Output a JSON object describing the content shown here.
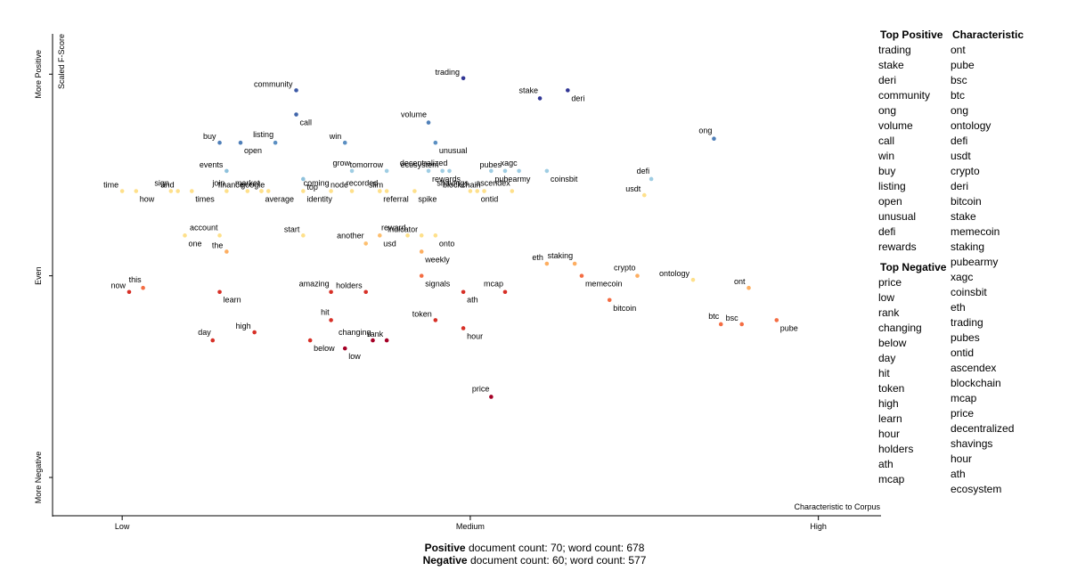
{
  "chart_data": {
    "type": "scatter",
    "title": "",
    "ylabel": "Scaled F-Score",
    "xlabel": "Characteristic to Corpus",
    "y_tick_labels": [
      "More Positive",
      "Even",
      "More Negative"
    ],
    "x_tick_labels": [
      "Low",
      "Medium",
      "High"
    ],
    "xlim": [
      0,
      1.19
    ],
    "ylim": [
      -0.095,
      1.1
    ],
    "points": [
      {
        "term": "trading",
        "x": 0.59,
        "y": 0.99,
        "color": "#313695"
      },
      {
        "term": "deri",
        "x": 0.74,
        "y": 0.96,
        "color": "#313695"
      },
      {
        "term": "stake",
        "x": 0.7,
        "y": 0.94,
        "color": "#313695"
      },
      {
        "term": "community",
        "x": 0.35,
        "y": 0.96,
        "color": "#3c59a6"
      },
      {
        "term": "call",
        "x": 0.35,
        "y": 0.9,
        "color": "#4065aa"
      },
      {
        "term": "volume",
        "x": 0.54,
        "y": 0.88,
        "color": "#4f7fb8"
      },
      {
        "term": "buy",
        "x": 0.24,
        "y": 0.83,
        "color": "#4f7fb8"
      },
      {
        "term": "open",
        "x": 0.27,
        "y": 0.83,
        "color": "#4f7fb8"
      },
      {
        "term": "listing",
        "x": 0.32,
        "y": 0.83,
        "color": "#5b8fc2"
      },
      {
        "term": "win",
        "x": 0.42,
        "y": 0.83,
        "color": "#5b8fc2"
      },
      {
        "term": "unusual",
        "x": 0.55,
        "y": 0.83,
        "color": "#5b8fc2"
      },
      {
        "term": "ong",
        "x": 0.95,
        "y": 0.84,
        "color": "#4f7fb8"
      },
      {
        "term": "events",
        "x": 0.25,
        "y": 0.76,
        "color": "#8ec1dc"
      },
      {
        "term": "top",
        "x": 0.36,
        "y": 0.74,
        "color": "#8ec1dc"
      },
      {
        "term": "grow",
        "x": 0.43,
        "y": 0.76,
        "color": "#9fcde3"
      },
      {
        "term": "tomorrow",
        "x": 0.48,
        "y": 0.76,
        "color": "#9fcde3"
      },
      {
        "term": "rewards",
        "x": 0.54,
        "y": 0.76,
        "color": "#9fcde3"
      },
      {
        "term": "decentralized",
        "x": 0.57,
        "y": 0.76,
        "color": "#9fcde3"
      },
      {
        "term": "ecosystem",
        "x": 0.56,
        "y": 0.76,
        "color": "#9fcde3"
      },
      {
        "term": "pubearmy",
        "x": 0.63,
        "y": 0.76,
        "color": "#9fcde3"
      },
      {
        "term": "xagc",
        "x": 0.67,
        "y": 0.76,
        "color": "#9fcde3"
      },
      {
        "term": "pubes",
        "x": 0.65,
        "y": 0.76,
        "color": "#9fcde3"
      },
      {
        "term": "coinsbit",
        "x": 0.71,
        "y": 0.76,
        "color": "#9fcde3"
      },
      {
        "term": "defi",
        "x": 0.86,
        "y": 0.74,
        "color": "#9fcde3"
      },
      {
        "term": "time",
        "x": 0.1,
        "y": 0.71,
        "color": "#fee08b"
      },
      {
        "term": "how",
        "x": 0.12,
        "y": 0.71,
        "color": "#fee08b"
      },
      {
        "term": "sign",
        "x": 0.17,
        "y": 0.71,
        "color": "#fee08b"
      },
      {
        "term": "and",
        "x": 0.18,
        "y": 0.71,
        "color": "#fee08b"
      },
      {
        "term": "times",
        "x": 0.2,
        "y": 0.71,
        "color": "#fee08b"
      },
      {
        "term": "join",
        "x": 0.25,
        "y": 0.71,
        "color": "#fee08b"
      },
      {
        "term": "finance",
        "x": 0.28,
        "y": 0.71,
        "color": "#fee08b"
      },
      {
        "term": "average",
        "x": 0.3,
        "y": 0.71,
        "color": "#fee08b"
      },
      {
        "term": "market",
        "x": 0.3,
        "y": 0.71,
        "color": "#fee08b"
      },
      {
        "term": "google",
        "x": 0.31,
        "y": 0.71,
        "color": "#fee08b"
      },
      {
        "term": "identity",
        "x": 0.36,
        "y": 0.71,
        "color": "#fee08b"
      },
      {
        "term": "coming",
        "x": 0.4,
        "y": 0.71,
        "color": "#fee08b"
      },
      {
        "term": "node",
        "x": 0.43,
        "y": 0.71,
        "color": "#fee08b"
      },
      {
        "term": "referral",
        "x": 0.47,
        "y": 0.71,
        "color": "#fee08b"
      },
      {
        "term": "recorded",
        "x": 0.47,
        "y": 0.71,
        "color": "#fee08b"
      },
      {
        "term": "slim",
        "x": 0.48,
        "y": 0.71,
        "color": "#fee08b"
      },
      {
        "term": "spike",
        "x": 0.52,
        "y": 0.71,
        "color": "#fee08b"
      },
      {
        "term": "shavings",
        "x": 0.6,
        "y": 0.71,
        "color": "#fee08b"
      },
      {
        "term": "blockchain",
        "x": 0.62,
        "y": 0.71,
        "color": "#fee08b"
      },
      {
        "term": "ontid",
        "x": 0.61,
        "y": 0.71,
        "color": "#fee08b"
      },
      {
        "term": "ascendex",
        "x": 0.66,
        "y": 0.71,
        "color": "#fee08b"
      },
      {
        "term": "usdt",
        "x": 0.85,
        "y": 0.7,
        "color": "#fee08b"
      },
      {
        "term": "one",
        "x": 0.19,
        "y": 0.6,
        "color": "#fee08b"
      },
      {
        "term": "account",
        "x": 0.24,
        "y": 0.6,
        "color": "#fee08b"
      },
      {
        "term": "start",
        "x": 0.36,
        "y": 0.6,
        "color": "#fee08b"
      },
      {
        "term": "usd",
        "x": 0.47,
        "y": 0.6,
        "color": "#fdbf6f"
      },
      {
        "term": "reward",
        "x": 0.51,
        "y": 0.6,
        "color": "#fee08b"
      },
      {
        "term": "indicator",
        "x": 0.53,
        "y": 0.6,
        "color": "#fee08b"
      },
      {
        "term": "onto",
        "x": 0.55,
        "y": 0.6,
        "color": "#fee08b"
      },
      {
        "term": "another",
        "x": 0.45,
        "y": 0.58,
        "color": "#fdbf6f"
      },
      {
        "term": "the",
        "x": 0.25,
        "y": 0.56,
        "color": "#fdae61"
      },
      {
        "term": "weekly",
        "x": 0.53,
        "y": 0.56,
        "color": "#fdae61"
      },
      {
        "term": "staking",
        "x": 0.75,
        "y": 0.53,
        "color": "#fdae61"
      },
      {
        "term": "eth",
        "x": 0.71,
        "y": 0.53,
        "color": "#fdae61"
      },
      {
        "term": "memecoin",
        "x": 0.76,
        "y": 0.5,
        "color": "#f46d43"
      },
      {
        "term": "crypto",
        "x": 0.84,
        "y": 0.5,
        "color": "#fdae61"
      },
      {
        "term": "ontology",
        "x": 0.92,
        "y": 0.49,
        "color": "#fee08b"
      },
      {
        "term": "signals",
        "x": 0.53,
        "y": 0.5,
        "color": "#f46d43"
      },
      {
        "term": "this",
        "x": 0.13,
        "y": 0.47,
        "color": "#f46d43"
      },
      {
        "term": "now",
        "x": 0.11,
        "y": 0.46,
        "color": "#d73027"
      },
      {
        "term": "learn",
        "x": 0.24,
        "y": 0.46,
        "color": "#d73027"
      },
      {
        "term": "amazing",
        "x": 0.4,
        "y": 0.46,
        "color": "#d73027"
      },
      {
        "term": "holders",
        "x": 0.45,
        "y": 0.46,
        "color": "#d73027"
      },
      {
        "term": "ath",
        "x": 0.59,
        "y": 0.46,
        "color": "#d73027"
      },
      {
        "term": "mcap",
        "x": 0.65,
        "y": 0.46,
        "color": "#d73027"
      },
      {
        "term": "ont",
        "x": 1.0,
        "y": 0.47,
        "color": "#fdae61"
      },
      {
        "term": "bitcoin",
        "x": 0.8,
        "y": 0.44,
        "color": "#f46d43"
      },
      {
        "term": "hit",
        "x": 0.4,
        "y": 0.39,
        "color": "#d73027"
      },
      {
        "term": "token",
        "x": 0.55,
        "y": 0.39,
        "color": "#d73027"
      },
      {
        "term": "hour",
        "x": 0.59,
        "y": 0.37,
        "color": "#d73027"
      },
      {
        "term": "btc",
        "x": 0.96,
        "y": 0.38,
        "color": "#f46d43"
      },
      {
        "term": "bsc",
        "x": 0.99,
        "y": 0.38,
        "color": "#f46d43"
      },
      {
        "term": "pube",
        "x": 1.04,
        "y": 0.39,
        "color": "#f46d43"
      },
      {
        "term": "day",
        "x": 0.23,
        "y": 0.34,
        "color": "#d73027"
      },
      {
        "term": "high",
        "x": 0.29,
        "y": 0.36,
        "color": "#d73027"
      },
      {
        "term": "below",
        "x": 0.37,
        "y": 0.34,
        "color": "#d73027"
      },
      {
        "term": "changing",
        "x": 0.46,
        "y": 0.34,
        "color": "#a50026"
      },
      {
        "term": "rank",
        "x": 0.48,
        "y": 0.34,
        "color": "#a50026"
      },
      {
        "term": "low",
        "x": 0.42,
        "y": 0.32,
        "color": "#a50026"
      },
      {
        "term": "price",
        "x": 0.63,
        "y": 0.2,
        "color": "#a50026"
      }
    ],
    "top_positive": {
      "title": "Top Positive",
      "terms": [
        "trading",
        "stake",
        "deri",
        "community",
        "ong",
        "volume",
        "call",
        "win",
        "buy",
        "listing",
        "open",
        "unusual",
        "defi",
        "rewards"
      ]
    },
    "top_negative": {
      "title": "Top Negative",
      "terms": [
        "price",
        "low",
        "rank",
        "changing",
        "below",
        "day",
        "hit",
        "token",
        "high",
        "learn",
        "hour",
        "holders",
        "ath",
        "mcap"
      ]
    },
    "characteristic": {
      "title": "Characteristic",
      "terms": [
        "ont",
        "pube",
        "bsc",
        "btc",
        "ong",
        "ontology",
        "defi",
        "usdt",
        "crypto",
        "deri",
        "bitcoin",
        "stake",
        "memecoin",
        "staking",
        "pubearmy",
        "xagc",
        "coinsbit",
        "eth",
        "trading",
        "pubes",
        "ontid",
        "ascendex",
        "blockchain",
        "mcap",
        "price",
        "decentralized",
        "shavings",
        "hour",
        "ath",
        "ecosystem"
      ]
    },
    "counts": {
      "positive_label": "Positive",
      "positive_text": " document count: 70; word count: 678",
      "negative_label": "Negative",
      "negative_text": " document count: 60; word count: 577"
    }
  }
}
